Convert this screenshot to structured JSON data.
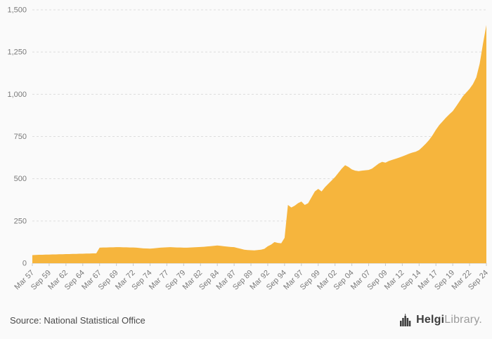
{
  "page": {
    "background": "#fafafa"
  },
  "footer": {
    "source": "Source: National Statistical Office",
    "logo": {
      "bold": "Helgi",
      "light": "Library",
      "dot": "."
    }
  },
  "chart_data": {
    "type": "area",
    "title": "",
    "xlabel": "",
    "ylabel": "",
    "legend": "none",
    "grid": "dashed-horizontal",
    "series_color": "#f6b53d",
    "axis_color": "#c9c9c9",
    "grid_color": "#dddddd",
    "tick_label_color": "#7a7a7a",
    "ylim": [
      0,
      1500
    ],
    "y_ticks": [
      0,
      250,
      500,
      750,
      1000,
      1250,
      1500
    ],
    "y_tick_labels": [
      "0",
      "250",
      "500",
      "750",
      "1,000",
      "1,250",
      "1,500"
    ],
    "x_tick_every": 5,
    "frequency": "semiannual",
    "x_tick_labels": [
      "Mar 57",
      "Sep 59",
      "Mar 62",
      "Sep 64",
      "Mar 67",
      "Sep 69",
      "Mar 72",
      "Sep 74",
      "Mar 77",
      "Sep 79",
      "Mar 82",
      "Sep 84",
      "Mar 87",
      "Sep 89",
      "Mar 92",
      "Sep 94",
      "Mar 97",
      "Sep 99",
      "Mar 02",
      "Sep 04",
      "Mar 07",
      "Sep 09",
      "Mar 12",
      "Sep 14",
      "Mar 17",
      "Sep 19",
      "Mar 22",
      "Sep 24"
    ],
    "values": [
      48,
      49,
      50,
      50,
      51,
      51,
      52,
      52,
      53,
      53,
      54,
      54,
      55,
      55,
      56,
      56,
      57,
      57,
      58,
      58,
      92,
      93,
      93,
      94,
      94,
      95,
      95,
      94,
      94,
      93,
      93,
      92,
      90,
      88,
      87,
      86,
      88,
      90,
      92,
      93,
      94,
      95,
      94,
      93,
      93,
      92,
      92,
      93,
      94,
      95,
      96,
      97,
      99,
      101,
      103,
      105,
      103,
      100,
      98,
      96,
      95,
      90,
      85,
      80,
      78,
      77,
      76,
      78,
      80,
      85,
      100,
      110,
      125,
      120,
      118,
      150,
      345,
      330,
      340,
      355,
      365,
      345,
      355,
      390,
      425,
      440,
      425,
      450,
      470,
      490,
      510,
      535,
      560,
      580,
      570,
      555,
      548,
      545,
      548,
      550,
      552,
      560,
      575,
      590,
      600,
      595,
      605,
      612,
      618,
      625,
      632,
      640,
      648,
      655,
      660,
      670,
      688,
      708,
      730,
      758,
      790,
      818,
      840,
      862,
      882,
      900,
      928,
      958,
      988,
      1010,
      1032,
      1060,
      1100,
      1180,
      1300,
      1410
    ]
  }
}
